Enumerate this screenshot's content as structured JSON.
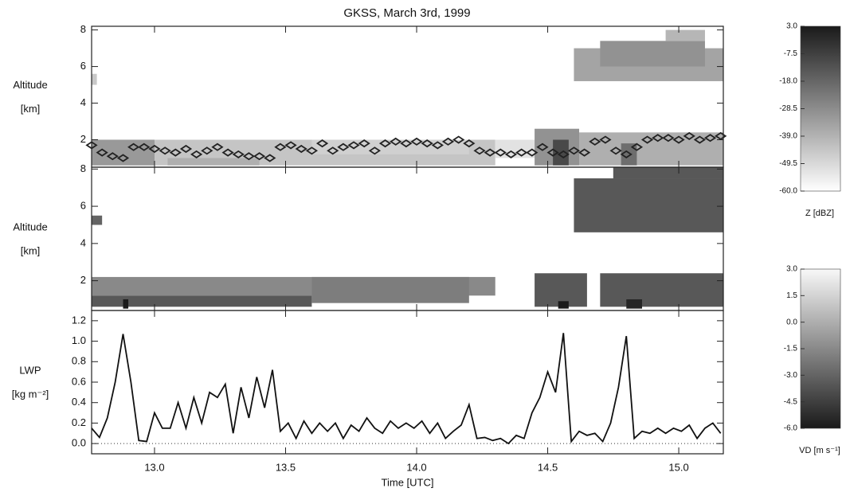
{
  "chart_data": [
    {
      "type": "heatmap",
      "title": "GKSS, March 3rd, 1999",
      "ylabel": [
        "Altitude",
        "[km]"
      ],
      "xlim": [
        12.76,
        15.17
      ],
      "ylim": [
        0.5,
        8.2
      ],
      "yticks": [
        2,
        4,
        6,
        8
      ],
      "patches": [
        {
          "t": [
            12.76,
            12.78
          ],
          "alt": [
            5.0,
            5.6
          ],
          "value": -45
        },
        {
          "t": [
            12.76,
            14.3
          ],
          "alt": [
            0.6,
            2.0
          ],
          "value": -44
        },
        {
          "t": [
            12.76,
            13.0
          ],
          "alt": [
            0.6,
            2.0
          ],
          "value": -32
        },
        {
          "t": [
            13.05,
            13.4
          ],
          "alt": [
            0.6,
            1.0
          ],
          "value": -38
        },
        {
          "t": [
            13.6,
            14.2
          ],
          "alt": [
            1.2,
            2.0
          ],
          "value": -47
        },
        {
          "t": [
            14.3,
            14.45
          ],
          "alt": [
            1.0,
            2.0
          ],
          "value": -52
        },
        {
          "t": [
            14.45,
            14.62
          ],
          "alt": [
            0.6,
            2.6
          ],
          "value": -30
        },
        {
          "t": [
            14.52,
            14.58
          ],
          "alt": [
            0.6,
            2.0
          ],
          "value": -10
        },
        {
          "t": [
            14.62,
            15.17
          ],
          "alt": [
            0.6,
            2.4
          ],
          "value": -38
        },
        {
          "t": [
            14.78,
            14.84
          ],
          "alt": [
            0.6,
            1.8
          ],
          "value": -20
        },
        {
          "t": [
            14.6,
            15.17
          ],
          "alt": [
            5.2,
            7.0
          ],
          "value": -35
        },
        {
          "t": [
            14.7,
            15.1
          ],
          "alt": [
            6.0,
            7.4
          ],
          "value": -30
        },
        {
          "t": [
            14.95,
            15.1
          ],
          "alt": [
            7.4,
            8.0
          ],
          "value": -40
        }
      ],
      "points": {
        "color": "#222",
        "x": [
          12.76,
          12.8,
          12.84,
          12.88,
          12.92,
          12.96,
          13.0,
          13.04,
          13.08,
          13.12,
          13.16,
          13.2,
          13.24,
          13.28,
          13.32,
          13.36,
          13.4,
          13.44,
          13.48,
          13.52,
          13.56,
          13.6,
          13.64,
          13.68,
          13.72,
          13.76,
          13.8,
          13.84,
          13.88,
          13.92,
          13.96,
          14.0,
          14.04,
          14.08,
          14.12,
          14.16,
          14.2,
          14.24,
          14.28,
          14.32,
          14.36,
          14.4,
          14.44,
          14.48,
          14.52,
          14.56,
          14.6,
          14.64,
          14.68,
          14.72,
          14.76,
          14.8,
          14.84,
          14.88,
          14.92,
          14.96,
          15.0,
          15.04,
          15.08,
          15.12,
          15.16
        ],
        "y": [
          1.7,
          1.3,
          1.1,
          1.0,
          1.6,
          1.6,
          1.5,
          1.4,
          1.3,
          1.5,
          1.2,
          1.4,
          1.6,
          1.3,
          1.2,
          1.1,
          1.1,
          1.0,
          1.6,
          1.7,
          1.5,
          1.4,
          1.8,
          1.4,
          1.6,
          1.7,
          1.8,
          1.4,
          1.8,
          1.9,
          1.8,
          1.9,
          1.8,
          1.7,
          1.9,
          2.0,
          1.8,
          1.4,
          1.3,
          1.3,
          1.2,
          1.3,
          1.3,
          1.6,
          1.3,
          1.2,
          1.4,
          1.3,
          1.9,
          2.0,
          1.4,
          1.2,
          1.6,
          2.0,
          2.1,
          2.1,
          2.0,
          2.2,
          2.0,
          2.1,
          2.2
        ]
      },
      "colorbar": {
        "label": "Z [dBZ]",
        "lim": [
          -60,
          3
        ],
        "colors": [
          "#ffffff",
          "#1a1a1a"
        ],
        "ticks": [
          {
            "value": 3,
            "label": "3.0"
          },
          -7.5,
          {
            "value": -18,
            "label": "-18.0"
          },
          -28.5,
          {
            "value": -39,
            "label": "-39.0"
          },
          -49.5,
          {
            "value": -60,
            "label": "-60.0"
          }
        ]
      }
    },
    {
      "type": "heatmap",
      "ylabel": [
        "Altitude",
        "[km]"
      ],
      "xlim": [
        12.76,
        15.17
      ],
      "ylim": [
        0.4,
        8.1
      ],
      "yticks": [
        2,
        4,
        6,
        8
      ],
      "patches": [
        {
          "t": [
            12.76,
            12.8
          ],
          "alt": [
            5.0,
            5.5
          ],
          "value": -3
        },
        {
          "t": [
            12.76,
            14.3
          ],
          "alt": [
            1.2,
            2.2
          ],
          "value": -1.5
        },
        {
          "t": [
            12.76,
            13.6
          ],
          "alt": [
            0.6,
            1.2
          ],
          "value": -3.5
        },
        {
          "t": [
            12.88,
            12.9
          ],
          "alt": [
            0.5,
            1.0
          ],
          "value": -6
        },
        {
          "t": [
            13.6,
            14.2
          ],
          "alt": [
            0.8,
            2.2
          ],
          "value": -2
        },
        {
          "t": [
            14.45,
            14.65
          ],
          "alt": [
            0.6,
            2.4
          ],
          "value": -3.5
        },
        {
          "t": [
            14.54,
            14.58
          ],
          "alt": [
            0.5,
            0.9
          ],
          "value": -6
        },
        {
          "t": [
            14.7,
            15.17
          ],
          "alt": [
            0.6,
            2.4
          ],
          "value": -3.5
        },
        {
          "t": [
            14.8,
            14.86
          ],
          "alt": [
            0.5,
            1.0
          ],
          "value": -5.5
        },
        {
          "t": [
            14.6,
            15.17
          ],
          "alt": [
            4.6,
            7.5
          ],
          "value": -3.5
        },
        {
          "t": [
            14.75,
            15.17
          ],
          "alt": [
            7.5,
            8.1
          ],
          "value": -3.5
        }
      ],
      "colorbar": {
        "label": "VD [m s⁻¹]",
        "lim": [
          -6,
          3
        ],
        "colors": [
          "#1a1a1a",
          "#f8f8f8"
        ],
        "ticks": [
          {
            "value": 3,
            "label": "3.0"
          },
          1.5,
          {
            "value": 0,
            "label": "0.0"
          },
          -1.5,
          {
            "value": -3,
            "label": "-3.0"
          },
          -4.5,
          {
            "value": -6,
            "label": "-6.0"
          }
        ]
      }
    },
    {
      "type": "line",
      "ylabel": [
        "LWP",
        "[kg m⁻²]"
      ],
      "xlabel": "Time [UTC]",
      "xlim": [
        12.76,
        15.17
      ],
      "ylim": [
        -0.1,
        1.3
      ],
      "xticks": [
        {
          "value": 13,
          "label": "13.0"
        },
        13.5,
        {
          "value": 14,
          "label": "14.0"
        },
        14.5,
        {
          "value": 15,
          "label": "15.0"
        }
      ],
      "yticks": [
        {
          "value": 0,
          "label": "0.0"
        },
        0.2,
        0.4,
        0.6,
        0.8,
        {
          "value": 1,
          "label": "1.0"
        },
        1.2
      ],
      "x": [
        12.76,
        12.79,
        12.82,
        12.85,
        12.88,
        12.91,
        12.94,
        12.97,
        13.0,
        13.03,
        13.06,
        13.09,
        13.12,
        13.15,
        13.18,
        13.21,
        13.24,
        13.27,
        13.3,
        13.33,
        13.36,
        13.39,
        13.42,
        13.45,
        13.48,
        13.51,
        13.54,
        13.57,
        13.6,
        13.63,
        13.66,
        13.69,
        13.72,
        13.75,
        13.78,
        13.81,
        13.84,
        13.87,
        13.9,
        13.93,
        13.96,
        13.99,
        14.02,
        14.05,
        14.08,
        14.11,
        14.14,
        14.17,
        14.2,
        14.23,
        14.26,
        14.29,
        14.32,
        14.35,
        14.38,
        14.41,
        14.44,
        14.47,
        14.5,
        14.53,
        14.56,
        14.59,
        14.62,
        14.65,
        14.68,
        14.71,
        14.74,
        14.77,
        14.8,
        14.83,
        14.86,
        14.89,
        14.92,
        14.95,
        14.98,
        15.01,
        15.04,
        15.07,
        15.1,
        15.13,
        15.16
      ],
      "series": [
        {
          "color": "#111",
          "values": [
            0.15,
            0.06,
            0.25,
            0.6,
            1.07,
            0.6,
            0.03,
            0.02,
            0.3,
            0.15,
            0.15,
            0.4,
            0.15,
            0.45,
            0.2,
            0.5,
            0.45,
            0.58,
            0.1,
            0.55,
            0.25,
            0.65,
            0.35,
            0.72,
            0.12,
            0.2,
            0.05,
            0.22,
            0.1,
            0.2,
            0.12,
            0.2,
            0.05,
            0.18,
            0.12,
            0.25,
            0.15,
            0.1,
            0.22,
            0.15,
            0.2,
            0.15,
            0.22,
            0.1,
            0.2,
            0.05,
            0.12,
            0.18,
            0.38,
            0.05,
            0.06,
            0.03,
            0.05,
            0.0,
            0.08,
            0.05,
            0.3,
            0.45,
            0.7,
            0.5,
            1.08,
            0.02,
            0.12,
            0.08,
            0.1,
            0.02,
            0.2,
            0.55,
            1.05,
            0.05,
            0.12,
            0.1,
            0.15,
            0.1,
            0.15,
            0.12,
            0.18,
            0.05,
            0.15,
            0.2,
            0.1
          ]
        }
      ]
    }
  ]
}
